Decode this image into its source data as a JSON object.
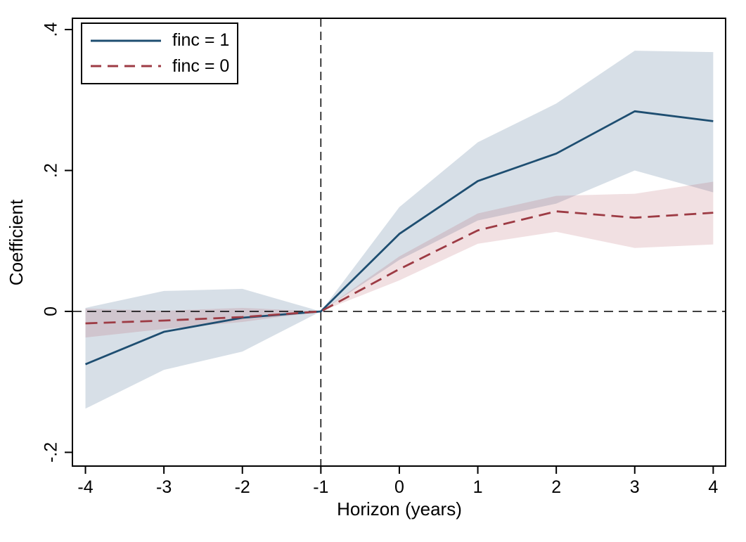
{
  "figure": {
    "background": "#ffffff",
    "frame_color": "#000000"
  },
  "chart_data": {
    "type": "line",
    "title": "",
    "xlabel": "Horizon (years)",
    "ylabel": "Coefficient",
    "x": [
      -4,
      -3,
      -2,
      -1,
      0,
      1,
      2,
      3,
      4
    ],
    "xtick_values": [
      -4,
      -3,
      -2,
      -1,
      0,
      1,
      2,
      3,
      4
    ],
    "xtick_labels": [
      "-4",
      "-3",
      "-2",
      "-1",
      "0",
      "1",
      "2",
      "3",
      "4"
    ],
    "ytick_values": [
      0.4,
      0.2,
      0,
      -0.2
    ],
    "ytick_labels": [
      ".4",
      ".2",
      "0",
      "-.2"
    ],
    "xlim": [
      -4.166,
      4.158
    ],
    "ylim": [
      -0.2195,
      0.416
    ],
    "grid": false,
    "legend_position": "top-left",
    "reference_lines": {
      "vertical_x": -1,
      "horizontal_y": 0,
      "color": "#000000",
      "style": "dashed"
    },
    "series": [
      {
        "name": "finc = 1",
        "line_style": "solid",
        "color": "#1e4e71",
        "band_color": "#5e7fa0",
        "band_opacity": 0.25,
        "values": [
          -0.075,
          -0.029,
          -0.009,
          0,
          0.11,
          0.185,
          0.224,
          0.284,
          0.27
        ],
        "ci_upper": [
          0.005,
          0.029,
          0.032,
          0,
          0.148,
          0.24,
          0.295,
          0.37,
          0.368
        ],
        "ci_lower": [
          -0.138,
          -0.083,
          -0.057,
          0,
          0.073,
          0.129,
          0.153,
          0.2,
          0.169
        ]
      },
      {
        "name": "finc = 0",
        "line_style": "dashed",
        "color": "#9d3b44",
        "band_color": "#b2535e",
        "band_opacity": 0.18,
        "values": [
          -0.017,
          -0.013,
          -0.008,
          0,
          0.06,
          0.115,
          0.142,
          0.133,
          0.14
        ],
        "ci_upper": [
          0.004,
          0.001,
          0.005,
          0,
          0.078,
          0.139,
          0.164,
          0.167,
          0.184
        ],
        "ci_lower": [
          -0.037,
          -0.025,
          -0.015,
          0,
          0.044,
          0.096,
          0.113,
          0.09,
          0.095
        ]
      }
    ]
  }
}
